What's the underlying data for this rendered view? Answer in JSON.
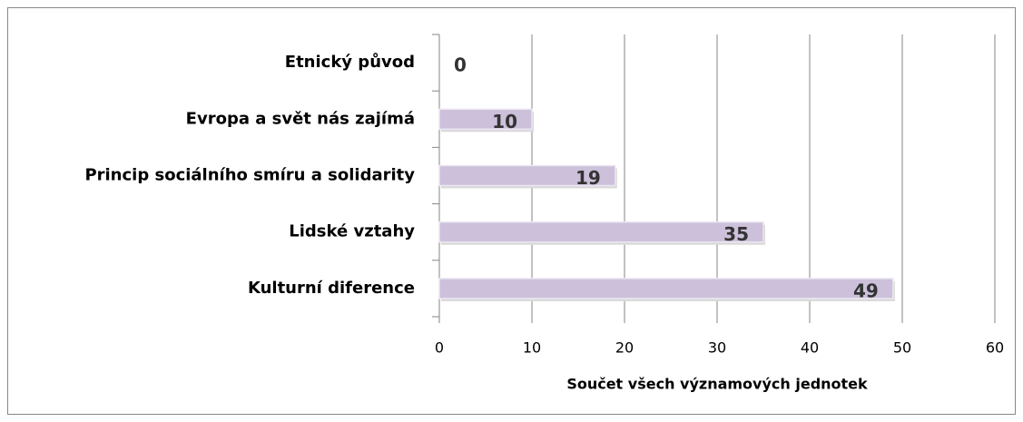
{
  "chart_data": {
    "type": "bar",
    "orientation": "horizontal",
    "categories": [
      "Etnický původ",
      "Evropa a svět nás zajímá",
      "Princip sociálního smíru a solidarity",
      "Lidské vztahy",
      "Kulturní diference"
    ],
    "values": [
      0,
      10,
      19,
      35,
      49
    ],
    "color": "#ccc0da",
    "x_label": "Součet všech významových jednotek",
    "xlim": [
      0,
      60
    ],
    "xticks": [
      0,
      10,
      20,
      30,
      40,
      50,
      60
    ],
    "grid": true
  }
}
